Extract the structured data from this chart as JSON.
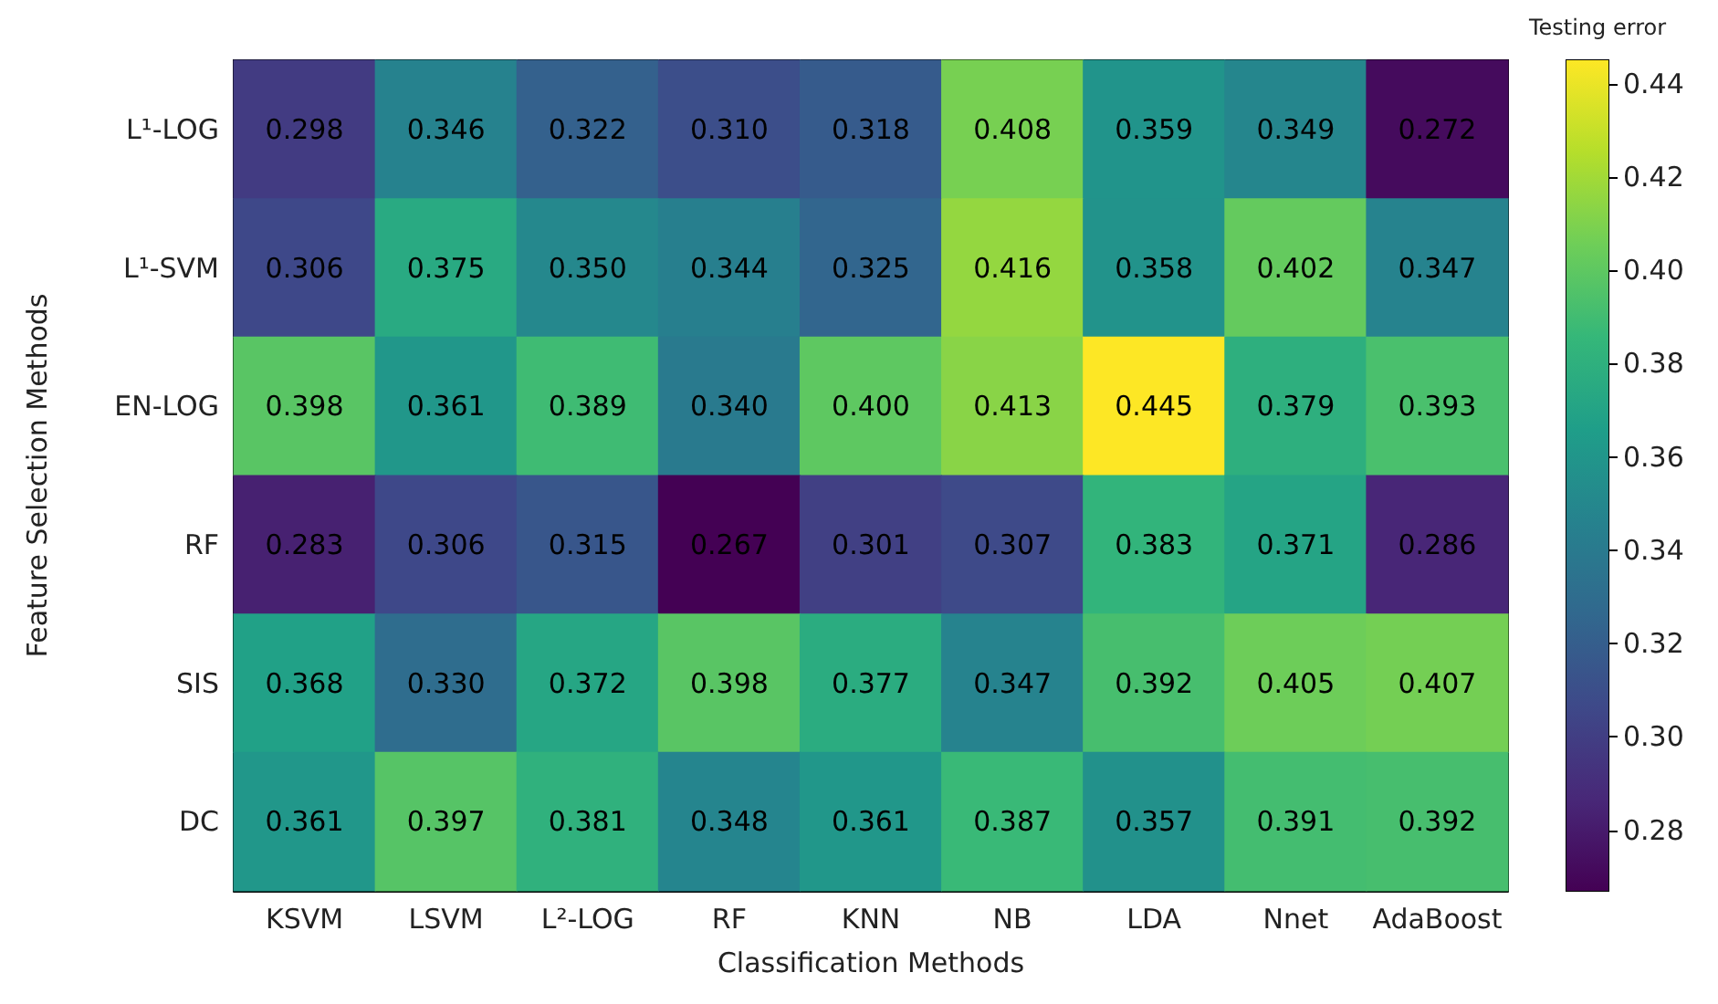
{
  "chart_data": {
    "type": "heatmap",
    "xlabel": "Classification Methods",
    "ylabel": "Feature Selection Methods",
    "clabel": "Testing error",
    "categories": [
      "KSVM",
      "LSVM",
      "L²-LOG",
      "RF",
      "KNN",
      "NB",
      "LDA",
      "Nnet",
      "AdaBoost"
    ],
    "y_categories": [
      "L¹-LOG",
      "L¹-SVM",
      "EN-LOG",
      "RF",
      "SIS",
      "DC"
    ],
    "cells": [
      [
        0.298,
        0.346,
        0.322,
        0.31,
        0.318,
        0.408,
        0.359,
        0.349,
        0.272
      ],
      [
        0.306,
        0.375,
        0.35,
        0.344,
        0.325,
        0.416,
        0.358,
        0.402,
        0.347
      ],
      [
        0.398,
        0.361,
        0.389,
        0.34,
        0.4,
        0.413,
        0.445,
        0.379,
        0.393
      ],
      [
        0.283,
        0.306,
        0.315,
        0.267,
        0.301,
        0.307,
        0.383,
        0.371,
        0.286
      ],
      [
        0.368,
        0.33,
        0.372,
        0.398,
        0.377,
        0.347,
        0.392,
        0.405,
        0.407
      ],
      [
        0.361,
        0.397,
        0.381,
        0.348,
        0.361,
        0.387,
        0.357,
        0.391,
        0.392
      ]
    ],
    "cell_labels": [
      [
        "0.298",
        "0.346",
        "0.322",
        "0.310",
        "0.318",
        "0.408",
        "0.359",
        "0.349",
        "0.272"
      ],
      [
        "0.306",
        "0.375",
        "0.350",
        "0.344",
        "0.325",
        "0.416",
        "0.358",
        "0.402",
        "0.347"
      ],
      [
        "0.398",
        "0.361",
        "0.389",
        "0.340",
        "0.400",
        "0.413",
        "0.445",
        "0.379",
        "0.393"
      ],
      [
        "0.283",
        "0.306",
        "0.315",
        "0.267",
        "0.301",
        "0.307",
        "0.383",
        "0.371",
        "0.286"
      ],
      [
        "0.368",
        "0.330",
        "0.372",
        "0.398",
        "0.377",
        "0.347",
        "0.392",
        "0.405",
        "0.407"
      ],
      [
        "0.361",
        "0.397",
        "0.381",
        "0.348",
        "0.361",
        "0.387",
        "0.357",
        "0.391",
        "0.392"
      ]
    ],
    "clim": [
      0.267,
      0.445
    ],
    "cticks": [
      0.28,
      {
        "value": 0.3,
        "label": "0.30"
      },
      0.32,
      0.34,
      0.36,
      0.38,
      {
        "value": 0.4,
        "label": "0.40"
      },
      0.42,
      0.44
    ]
  }
}
